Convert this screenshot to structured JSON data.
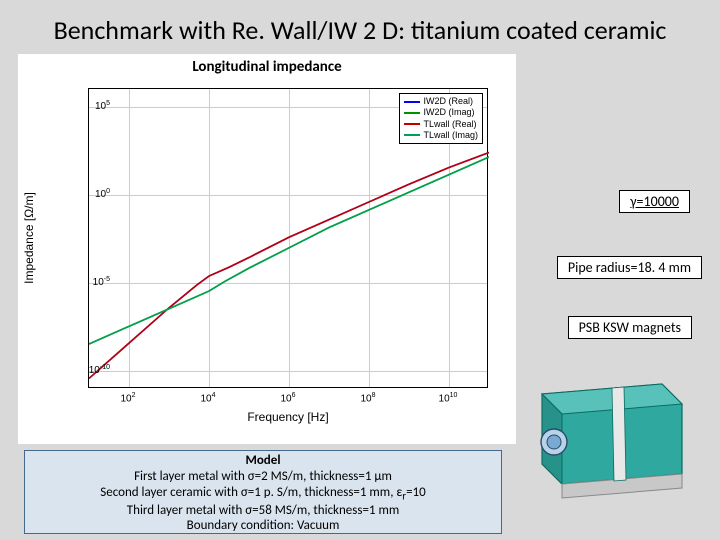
{
  "title": "Benchmark with Re. Wall/IW 2 D: titanium coated ceramic",
  "chart": {
    "type": "line",
    "title": "Longitudinal impedance",
    "xlabel": "Frequency [Hz]",
    "ylabel": "Impedance [Ω/m]",
    "x_log_exponents": [
      2,
      4,
      6,
      8,
      10
    ],
    "y_log_exponents": [
      -10,
      -5,
      0,
      5
    ],
    "xlim_exp": [
      1,
      11
    ],
    "ylim_exp": [
      -11,
      6
    ],
    "legend": [
      {
        "label": "IW2D (Real)",
        "color": "#0000ff"
      },
      {
        "label": "IW2D (Imag)",
        "color": "#009000"
      },
      {
        "label": "TLwall (Real)",
        "color": "#c00000"
      },
      {
        "label": "TLwall (Imag)",
        "color": "#00a050"
      }
    ],
    "series": {
      "real": {
        "points": [
          [
            1,
            -10.4
          ],
          [
            2,
            -8.4
          ],
          [
            3,
            -6.4
          ],
          [
            3.7,
            -5.1
          ],
          [
            4,
            -4.6
          ],
          [
            4.5,
            -4.1
          ],
          [
            5,
            -3.55
          ],
          [
            5.3,
            -3.2
          ],
          [
            6,
            -2.4
          ],
          [
            7,
            -1.4
          ],
          [
            8,
            -0.4
          ],
          [
            9,
            0.6
          ],
          [
            10,
            1.55
          ],
          [
            11,
            2.4
          ]
        ],
        "colors": [
          "#0000ff",
          "#c00000"
        ]
      },
      "imag": {
        "points": [
          [
            1,
            -8.45
          ],
          [
            2,
            -7.45
          ],
          [
            3,
            -6.45
          ],
          [
            4,
            -5.45
          ],
          [
            4.4,
            -4.9
          ],
          [
            5,
            -4.15
          ],
          [
            6,
            -3.0
          ],
          [
            7,
            -1.85
          ],
          [
            8,
            -0.85
          ],
          [
            9,
            0.15
          ],
          [
            10,
            1.15
          ],
          [
            11,
            2.15
          ]
        ],
        "colors": [
          "#009000",
          "#00a050"
        ]
      }
    }
  },
  "callouts": {
    "gamma": "γ=10000",
    "gamma_underline": true,
    "radius": "Pipe radius=18. 4 mm",
    "magnets": "PSB KSW magnets"
  },
  "model": {
    "title": "Model",
    "line1": "First layer metal with σ=2 MS/m, thickness=1 µm",
    "line2_a": "Second layer ceramic with σ=1 p. S/m, thickness=1 mm, ε",
    "line2_sub": "r",
    "line2_b": "=10",
    "line3": "Third layer metal with σ=58 MS/m, thickness=1 mm",
    "line4": "Boundary condition: Vacuum"
  },
  "magnet3d": {
    "body_fill": "#2fa9a0",
    "body_stroke": "#0a6a5f",
    "pipe_fill": "#b8d2ea",
    "pipe_stroke": "#2a4a6a",
    "support_fill": "#c8c8c8"
  }
}
